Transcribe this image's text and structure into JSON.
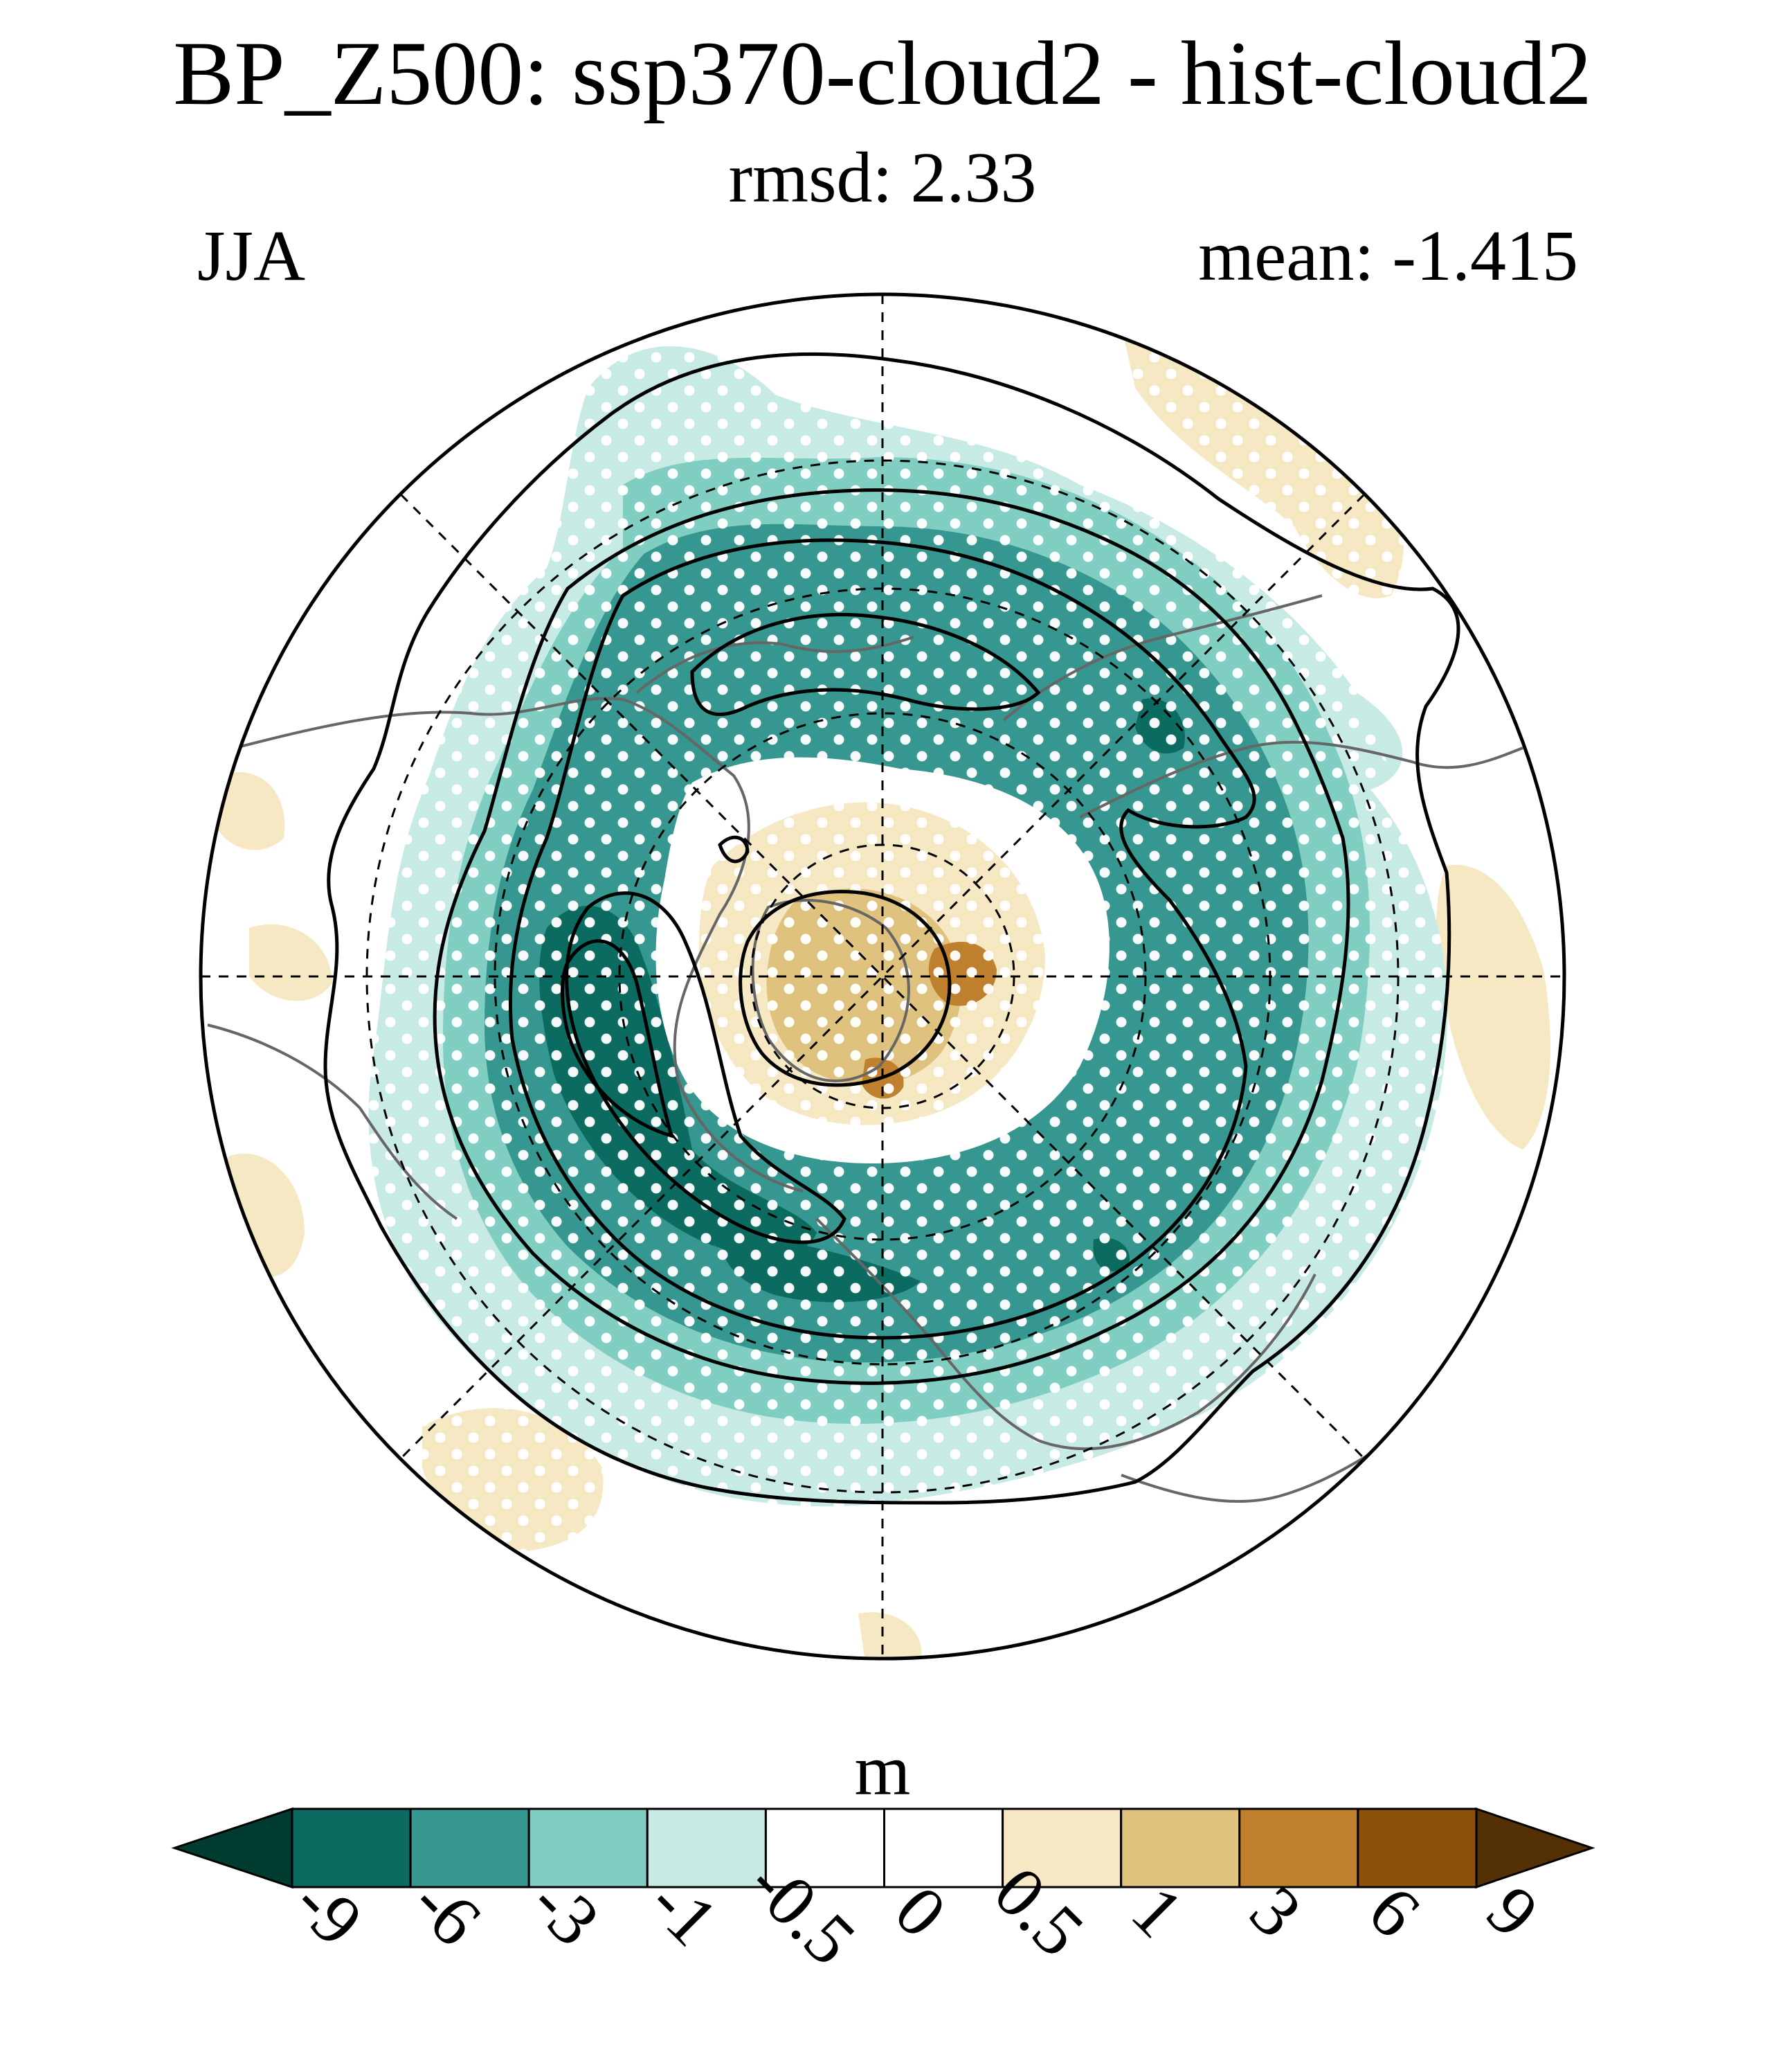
{
  "title": "BP_Z500: ssp370-cloud2 - hist-cloud2",
  "subtitle": "rmsd: 2.33",
  "season": "JJA",
  "mean_label": "mean: -1.415",
  "colorbar": {
    "units": "m",
    "levels": [
      "-9",
      "-6",
      "-3",
      "-1",
      "-0.5",
      "0",
      "0.5",
      "1",
      "3",
      "6",
      "9"
    ],
    "colors": [
      "#003d30",
      "#0b6b60",
      "#35978f",
      "#80cdc1",
      "#c7eae5",
      "#ffffff",
      "#ffffff",
      "#f6e8c3",
      "#dfc27d",
      "#bf812d",
      "#8c510a",
      "#543005"
    ]
  },
  "map": {
    "projection": "north-polar-stereographic",
    "field": "500 hPa geopotential height difference (ssp370-cloud2 minus hist-cloud2)",
    "stippling": "significance dots"
  }
}
